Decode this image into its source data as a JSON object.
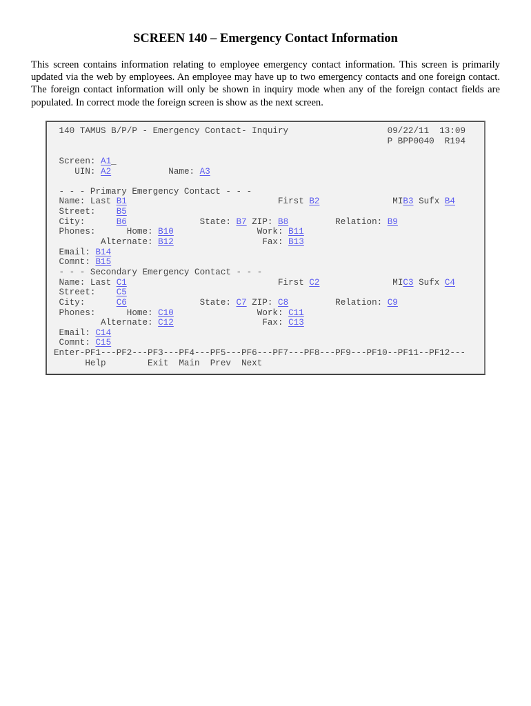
{
  "title": "SCREEN 140 – Emergency Contact Information",
  "intro": "This screen contains information relating to employee emergency contact information.  This screen is primarily updated via the web by employees. An employee may have up to two emergency contacts and one foreign contact. The foreign contact information will only be shown in inquiry mode when any of the foreign contact fields are populated.  In correct mode the foreign screen is show as the next screen.",
  "colors": {
    "field": "#5a5af0",
    "text": "#444444",
    "panel": "#f2f2f2"
  },
  "terminal_lines": [
    {
      "name": "header-line",
      "segs": [
        {
          "t": " 140 TAMUS B/P/P - Emergency Contact- Inquiry                   09/22/11  13:09"
        }
      ]
    },
    {
      "name": "program-line",
      "segs": [
        {
          "t": "                                                                P BPP0040  R194"
        }
      ]
    },
    {
      "name": "blank-line",
      "segs": []
    },
    {
      "name": "screen-line",
      "segs": [
        {
          "t": " Screen: "
        },
        {
          "f": "A1"
        },
        {
          "t": "_"
        }
      ]
    },
    {
      "name": "uin-name-line",
      "segs": [
        {
          "t": "    UIN: "
        },
        {
          "f": "A2"
        },
        {
          "t": "           Name: "
        },
        {
          "f": "A3"
        }
      ]
    },
    {
      "name": "blank-line",
      "segs": []
    },
    {
      "name": "primary-header",
      "segs": [
        {
          "t": " - - - Primary Emergency Contact - - -"
        }
      ]
    },
    {
      "name": "primary-name-line",
      "segs": [
        {
          "t": " Name: Last "
        },
        {
          "f": "B1"
        },
        {
          "t": "                             First "
        },
        {
          "f": "B2"
        },
        {
          "t": "              MI"
        },
        {
          "f": "B3"
        },
        {
          "t": " Sufx "
        },
        {
          "f": "B4"
        }
      ]
    },
    {
      "name": "primary-street-line",
      "segs": [
        {
          "t": " Street:    "
        },
        {
          "f": "B5"
        }
      ]
    },
    {
      "name": "primary-city-line",
      "segs": [
        {
          "t": " City:      "
        },
        {
          "f": "B6"
        },
        {
          "t": "              State: "
        },
        {
          "f": "B7"
        },
        {
          "t": " ZIP: "
        },
        {
          "f": "B8"
        },
        {
          "t": "         Relation: "
        },
        {
          "f": "B9"
        }
      ]
    },
    {
      "name": "primary-phones-line",
      "segs": [
        {
          "t": " Phones:      Home: "
        },
        {
          "f": "B10"
        },
        {
          "t": "                Work: "
        },
        {
          "f": "B11"
        }
      ]
    },
    {
      "name": "primary-alternate-line",
      "segs": [
        {
          "t": "         Alternate: "
        },
        {
          "f": "B12"
        },
        {
          "t": "                 Fax: "
        },
        {
          "f": "B13"
        }
      ]
    },
    {
      "name": "primary-email-line",
      "segs": [
        {
          "t": " Email: "
        },
        {
          "f": "B14"
        }
      ]
    },
    {
      "name": "primary-comment-line",
      "segs": [
        {
          "t": " Comnt: "
        },
        {
          "f": "B15"
        }
      ]
    },
    {
      "name": "secondary-header",
      "segs": [
        {
          "t": " - - - Secondary Emergency Contact - - -"
        }
      ]
    },
    {
      "name": "secondary-name-line",
      "segs": [
        {
          "t": " Name: Last "
        },
        {
          "f": "C1"
        },
        {
          "t": "                             First "
        },
        {
          "f": "C2"
        },
        {
          "t": "              MI"
        },
        {
          "f": "C3"
        },
        {
          "t": " Sufx "
        },
        {
          "f": "C4"
        }
      ]
    },
    {
      "name": "secondary-street-line",
      "segs": [
        {
          "t": " Street:    "
        },
        {
          "f": "C5"
        }
      ]
    },
    {
      "name": "secondary-city-line",
      "segs": [
        {
          "t": " City:      "
        },
        {
          "f": "C6"
        },
        {
          "t": "              State: "
        },
        {
          "f": "C7"
        },
        {
          "t": " ZIP: "
        },
        {
          "f": "C8"
        },
        {
          "t": "         Relation: "
        },
        {
          "f": "C9"
        }
      ]
    },
    {
      "name": "secondary-phones-line",
      "segs": [
        {
          "t": " Phones:      Home: "
        },
        {
          "f": "C10"
        },
        {
          "t": "                Work: "
        },
        {
          "f": "C11"
        }
      ]
    },
    {
      "name": "secondary-alternate-line",
      "segs": [
        {
          "t": "         Alternate: "
        },
        {
          "f": "C12"
        },
        {
          "t": "                 Fax: "
        },
        {
          "f": "C13"
        }
      ]
    },
    {
      "name": "secondary-email-line",
      "segs": [
        {
          "t": " Email: "
        },
        {
          "f": "C14"
        }
      ]
    },
    {
      "name": "secondary-comment-line",
      "segs": [
        {
          "t": " Comnt: "
        },
        {
          "f": "C15"
        }
      ]
    },
    {
      "name": "pf-keys-line",
      "segs": [
        {
          "t": "Enter-PF1---PF2---PF3---PF4---PF5---PF6---PF7---PF8---PF9---PF10--PF11--PF12---"
        }
      ]
    },
    {
      "name": "pf-labels-line",
      "segs": [
        {
          "t": "      Help        Exit  Main  Prev  Next"
        }
      ]
    }
  ]
}
